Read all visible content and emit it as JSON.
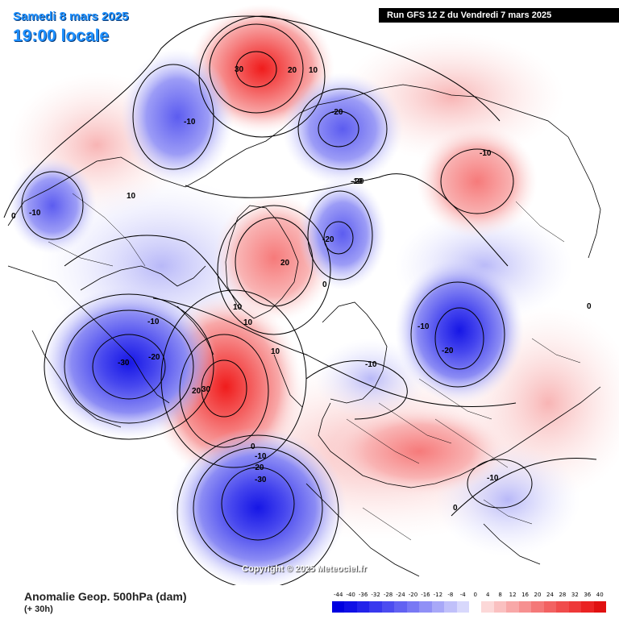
{
  "header": {
    "date": "Samedi 8 mars 2025",
    "time": "19:00 locale",
    "run": "Run GFS 12 Z du Vendredi 7 mars 2025"
  },
  "copyright": "Copyright © 2025 Meteociel.fr",
  "footer": {
    "variable": "Anomalie Geop. 500hPa (dam)",
    "forecast_hour": "(+ 30h)"
  },
  "legend": {
    "ticks": [
      "-44",
      "-40",
      "-36",
      "-32",
      "-28",
      "-24",
      "-20",
      "-16",
      "-12",
      "-8",
      "-4",
      "0",
      "4",
      "8",
      "12",
      "16",
      "20",
      "24",
      "28",
      "32",
      "36",
      "40"
    ],
    "colors": [
      "#0000e0",
      "#1010e6",
      "#2323ea",
      "#3838ee",
      "#4c4cf0",
      "#6262f2",
      "#7878f4",
      "#9090f6",
      "#a8a8f8",
      "#c0c0fa",
      "#d8d8fc",
      "#ffffff",
      "#fcd8d8",
      "#fac0c0",
      "#f8a8a8",
      "#f69090",
      "#f47878",
      "#f26262",
      "#f04c4c",
      "#ee3838",
      "#ea2323",
      "#e01010"
    ]
  },
  "anomalies": [
    {
      "label": "30",
      "kind": "positive",
      "value": 30
    },
    {
      "label": "20",
      "kind": "positive",
      "value": 20
    },
    {
      "label": "10",
      "kind": "positive",
      "value": 10
    },
    {
      "label": "-10",
      "kind": "negative",
      "value": -10
    },
    {
      "label": "-20",
      "kind": "negative",
      "value": -20
    },
    {
      "label": "-10",
      "kind": "negative",
      "value": -10
    },
    {
      "label": "-20",
      "kind": "negative",
      "value": -20
    },
    {
      "label": "10",
      "kind": "positive",
      "value": 10
    },
    {
      "label": "-10",
      "kind": "negative",
      "value": -10
    },
    {
      "label": "0",
      "kind": "zero",
      "value": 0
    },
    {
      "label": "-10",
      "kind": "negative",
      "value": -10
    },
    {
      "label": "-20",
      "kind": "negative",
      "value": -20
    },
    {
      "label": "10",
      "kind": "positive",
      "value": 10
    },
    {
      "label": "-10",
      "kind": "negative",
      "value": -10
    },
    {
      "label": "-30",
      "kind": "negative",
      "value": -30
    },
    {
      "label": "-20",
      "kind": "negative",
      "value": -20
    },
    {
      "label": "20",
      "kind": "positive",
      "value": 20
    },
    {
      "label": "0",
      "kind": "zero",
      "value": 0
    },
    {
      "label": "10",
      "kind": "positive",
      "value": 10
    },
    {
      "label": "10",
      "kind": "positive",
      "value": 10
    },
    {
      "label": "10",
      "kind": "positive",
      "value": 10
    },
    {
      "label": "20",
      "kind": "positive",
      "value": 20
    },
    {
      "label": "30",
      "kind": "positive",
      "value": 30
    },
    {
      "label": "-10",
      "kind": "negative",
      "value": -10
    },
    {
      "label": "-10",
      "kind": "negative",
      "value": -10
    },
    {
      "label": "-20",
      "kind": "negative",
      "value": -20
    },
    {
      "label": "-10",
      "kind": "negative",
      "value": -10
    },
    {
      "label": "0",
      "kind": "zero",
      "value": 0
    },
    {
      "label": "-10",
      "kind": "negative",
      "value": -10
    },
    {
      "label": "-20",
      "kind": "negative",
      "value": -20
    },
    {
      "label": "-30",
      "kind": "negative",
      "value": -30
    },
    {
      "label": "-10",
      "kind": "negative",
      "value": -10
    },
    {
      "label": "0",
      "kind": "zero",
      "value": 0
    },
    {
      "label": "0",
      "kind": "zero",
      "value": 0
    }
  ]
}
